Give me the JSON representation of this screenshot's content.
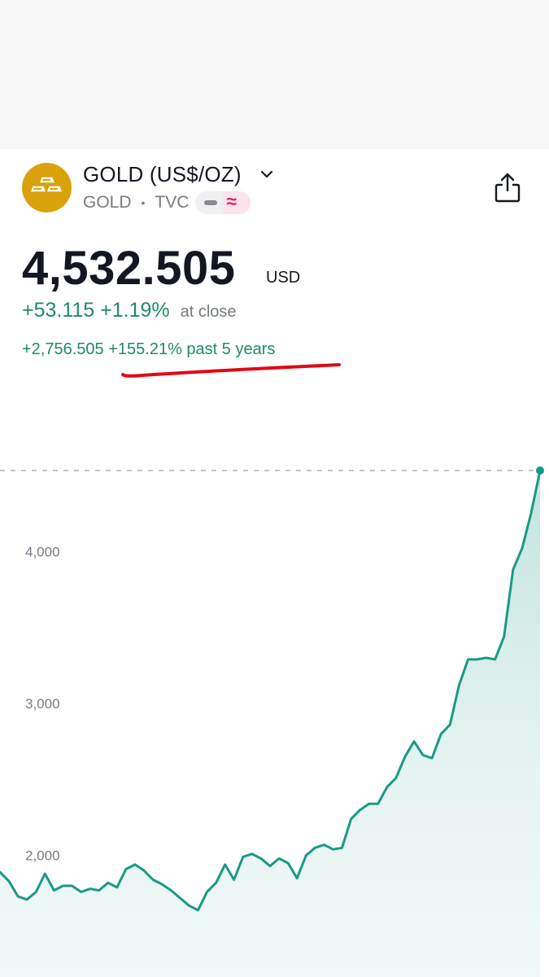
{
  "header": {
    "symbol_name": "GOLD (US$/OZ)",
    "ticker": "GOLD",
    "separator": "•",
    "exchange": "TVC",
    "status_icon_left": "dash-icon",
    "status_icon_right": "wave-icon"
  },
  "quote": {
    "price": "4,532.505",
    "currency": "USD",
    "change": "+53.115",
    "change_percent": "+1.19%",
    "session_note": "at close",
    "period_change": "+2,756.505",
    "period_change_percent": "+155.21%",
    "period_label": "past 5 years"
  },
  "icons": {
    "logo": "gold-bars-logo",
    "dropdown": "chevron-down-icon",
    "share": "share-icon"
  },
  "colors": {
    "accent_up": "#1e8a6e",
    "line": "#1a9a85",
    "logo_bg": "#d9a20d",
    "annotation": "#e30613"
  },
  "chart_data": {
    "type": "area",
    "ytick_labels": [
      "4,000",
      "3,000",
      "2,000"
    ],
    "yticks": [
      4000,
      3000,
      2000
    ],
    "ylim": [
      1200,
      4950
    ],
    "last_value": 4532.505,
    "grid": false,
    "values": [
      1890,
      1830,
      1730,
      1710,
      1760,
      1880,
      1770,
      1800,
      1800,
      1760,
      1780,
      1770,
      1820,
      1790,
      1910,
      1940,
      1900,
      1840,
      1810,
      1770,
      1720,
      1670,
      1640,
      1760,
      1820,
      1940,
      1840,
      1990,
      2010,
      1980,
      1930,
      1980,
      1950,
      1850,
      2000,
      2050,
      2070,
      2040,
      2050,
      2240,
      2300,
      2340,
      2340,
      2450,
      2510,
      2650,
      2750,
      2660,
      2640,
      2800,
      2860,
      3120,
      3290,
      3290,
      3300,
      3290,
      3440,
      3880,
      4020,
      4250,
      4532.505
    ]
  }
}
